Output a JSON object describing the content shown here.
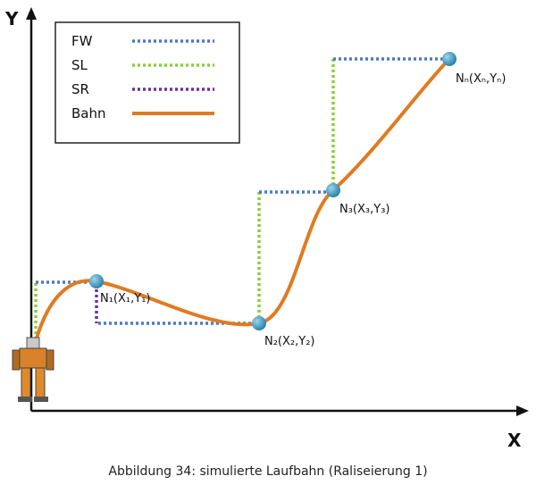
{
  "axes": {
    "y_label": "Y",
    "x_label": "X"
  },
  "legend": [
    {
      "label": "FW"
    },
    {
      "label": "SL"
    },
    {
      "label": "SR"
    },
    {
      "label": "Bahn"
    }
  ],
  "nodes": [
    {
      "label": "N₁(X₁,Y₁)"
    },
    {
      "label": "N₂(X₂,Y₂)"
    },
    {
      "label": "N₃(X₃,Y₃)"
    },
    {
      "label": "Nₙ(Xₙ,Yₙ)"
    }
  ],
  "caption": "Abbildung 34: simulierte Laufbahn (Raliseierung 1)"
}
